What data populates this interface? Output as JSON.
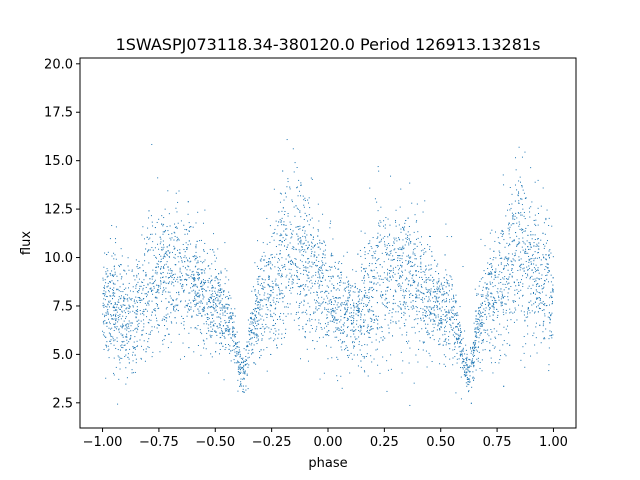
{
  "chart_data": {
    "type": "scatter",
    "title": "1SWASPJ073118.34-380120.0 Period 126913.13281s",
    "xlabel": "phase",
    "ylabel": "flux",
    "xlim": [
      -1.1,
      1.1
    ],
    "ylim": [
      1.2,
      20.3
    ],
    "xticks": [
      -1.0,
      -0.75,
      -0.5,
      -0.25,
      0.0,
      0.25,
      0.5,
      0.75,
      1.0
    ],
    "xtick_labels": [
      "−1.00",
      "−0.75",
      "−0.50",
      "−0.25",
      "0.00",
      "0.25",
      "0.50",
      "0.75",
      "1.00"
    ],
    "yticks": [
      2.5,
      5.0,
      7.5,
      10.0,
      12.5,
      15.0,
      17.5,
      20.0
    ],
    "ytick_labels": [
      "2.5",
      "5.0",
      "7.5",
      "10.0",
      "12.5",
      "15.0",
      "17.5",
      "20.0"
    ],
    "grid": false,
    "point_color": "#1f77b4",
    "profile": {
      "description_values": "phase-folded light curve: mean flux vs phase (repeats with period 1)",
      "phase": [
        0.0,
        0.05,
        0.1,
        0.15,
        0.2,
        0.25,
        0.3,
        0.35,
        0.4,
        0.45,
        0.5,
        0.55,
        0.58,
        0.6,
        0.62,
        0.64,
        0.66,
        0.7,
        0.75,
        0.8,
        0.85,
        0.9,
        0.95,
        1.0
      ],
      "mean_flux": [
        8.0,
        7.4,
        6.8,
        7.0,
        8.2,
        9.0,
        9.4,
        9.2,
        8.8,
        8.0,
        7.6,
        7.0,
        6.0,
        4.8,
        4.0,
        4.6,
        6.2,
        7.5,
        8.2,
        9.6,
        10.2,
        9.6,
        8.8,
        8.0
      ],
      "scatter": [
        1.6,
        1.5,
        1.3,
        1.4,
        1.7,
        1.8,
        1.8,
        1.7,
        1.6,
        1.4,
        1.3,
        1.0,
        0.8,
        0.7,
        0.5,
        0.7,
        0.9,
        1.3,
        1.6,
        2.0,
        2.2,
        2.0,
        1.8,
        1.6
      ]
    },
    "n_points": 5200,
    "phase_range": [
      -1.0,
      1.0
    ]
  }
}
